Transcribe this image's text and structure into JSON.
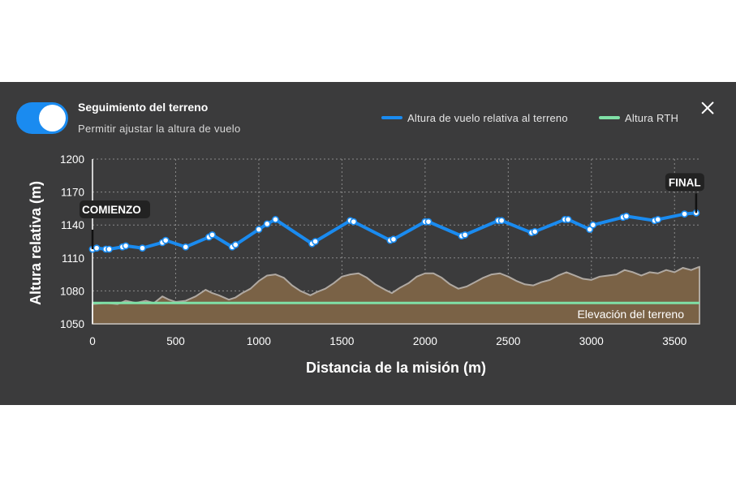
{
  "panel": {
    "toggle": {
      "on": true,
      "title": "Seguimiento del terreno",
      "subtitle": "Permitir ajustar la altura de vuelo"
    },
    "close_icon": "close-icon"
  },
  "colors": {
    "panel_bg": "#3b3b3c",
    "flight_line": "#1a8bf0",
    "rth_line": "#7fe0a6",
    "terrain_fill": "#7a6246",
    "terrain_edge": "#b0a9a2",
    "toggle_on": "#1a8bf0"
  },
  "chart_data": {
    "type": "line",
    "xlabel": "Distancia de la misión (m)",
    "ylabel": "Altura relativa (m)",
    "xlim": [
      0,
      3650
    ],
    "ylim": [
      1050,
      1200
    ],
    "xticks": [
      "0",
      "500",
      "1000",
      "1500",
      "2000",
      "2500",
      "3000",
      "3500"
    ],
    "yticks": [
      "1050",
      "1080",
      "1110",
      "1140",
      "1170",
      "1200"
    ],
    "grid": true,
    "legend_position": "top-right",
    "legend": [
      "Altura de vuelo relativa al terreno",
      "Altura RTH"
    ],
    "start_label": "COMIENZO",
    "end_label": "FINAL",
    "terrain_label": "Elevación del terreno",
    "series": [
      {
        "name": "Altura de vuelo relativa al terreno",
        "x": [
          0,
          25,
          80,
          100,
          180,
          200,
          300,
          420,
          440,
          560,
          700,
          720,
          840,
          860,
          1000,
          1050,
          1100,
          1320,
          1340,
          1550,
          1570,
          1790,
          1810,
          2000,
          2020,
          2220,
          2240,
          2440,
          2460,
          2640,
          2660,
          2840,
          2860,
          2990,
          3010,
          3190,
          3210,
          3380,
          3400,
          3560,
          3630
        ],
        "y": [
          1118,
          1119,
          1118,
          1118,
          1120,
          1121,
          1119,
          1124,
          1126,
          1120,
          1129,
          1131,
          1120,
          1122,
          1136,
          1141,
          1145,
          1123,
          1125,
          1144,
          1143,
          1126,
          1127,
          1143,
          1143,
          1130,
          1131,
          1144,
          1144,
          1133,
          1134,
          1145,
          1145,
          1136,
          1140,
          1147,
          1148,
          1144,
          1145,
          1150,
          1151
        ]
      },
      {
        "name": "Altura RTH",
        "x": [
          0,
          3650
        ],
        "y": [
          1069,
          1069
        ]
      },
      {
        "name": "Elevación del terreno",
        "x": [
          0,
          80,
          150,
          200,
          260,
          320,
          370,
          420,
          460,
          500,
          560,
          620,
          680,
          720,
          760,
          820,
          860,
          900,
          950,
          1000,
          1050,
          1100,
          1150,
          1200,
          1250,
          1310,
          1350,
          1400,
          1450,
          1500,
          1550,
          1600,
          1650,
          1700,
          1760,
          1800,
          1850,
          1900,
          1950,
          2000,
          2050,
          2100,
          2150,
          2200,
          2250,
          2300,
          2350,
          2400,
          2450,
          2500,
          2550,
          2600,
          2650,
          2700,
          2750,
          2800,
          2850,
          2900,
          2950,
          3000,
          3050,
          3100,
          3150,
          3200,
          3250,
          3300,
          3350,
          3400,
          3450,
          3500,
          3550,
          3600,
          3650
        ],
        "y": [
          1068,
          1069,
          1068,
          1071,
          1069,
          1071,
          1069,
          1075,
          1072,
          1070,
          1071,
          1075,
          1081,
          1078,
          1076,
          1072,
          1074,
          1078,
          1082,
          1089,
          1094,
          1095,
          1092,
          1085,
          1080,
          1076,
          1079,
          1082,
          1087,
          1093,
          1095,
          1096,
          1092,
          1086,
          1081,
          1078,
          1083,
          1087,
          1093,
          1096,
          1096,
          1092,
          1086,
          1082,
          1084,
          1088,
          1092,
          1095,
          1096,
          1093,
          1089,
          1086,
          1085,
          1088,
          1090,
          1094,
          1097,
          1094,
          1091,
          1090,
          1093,
          1094,
          1095,
          1099,
          1097,
          1094,
          1097,
          1096,
          1099,
          1097,
          1101,
          1099,
          1102
        ]
      }
    ]
  }
}
